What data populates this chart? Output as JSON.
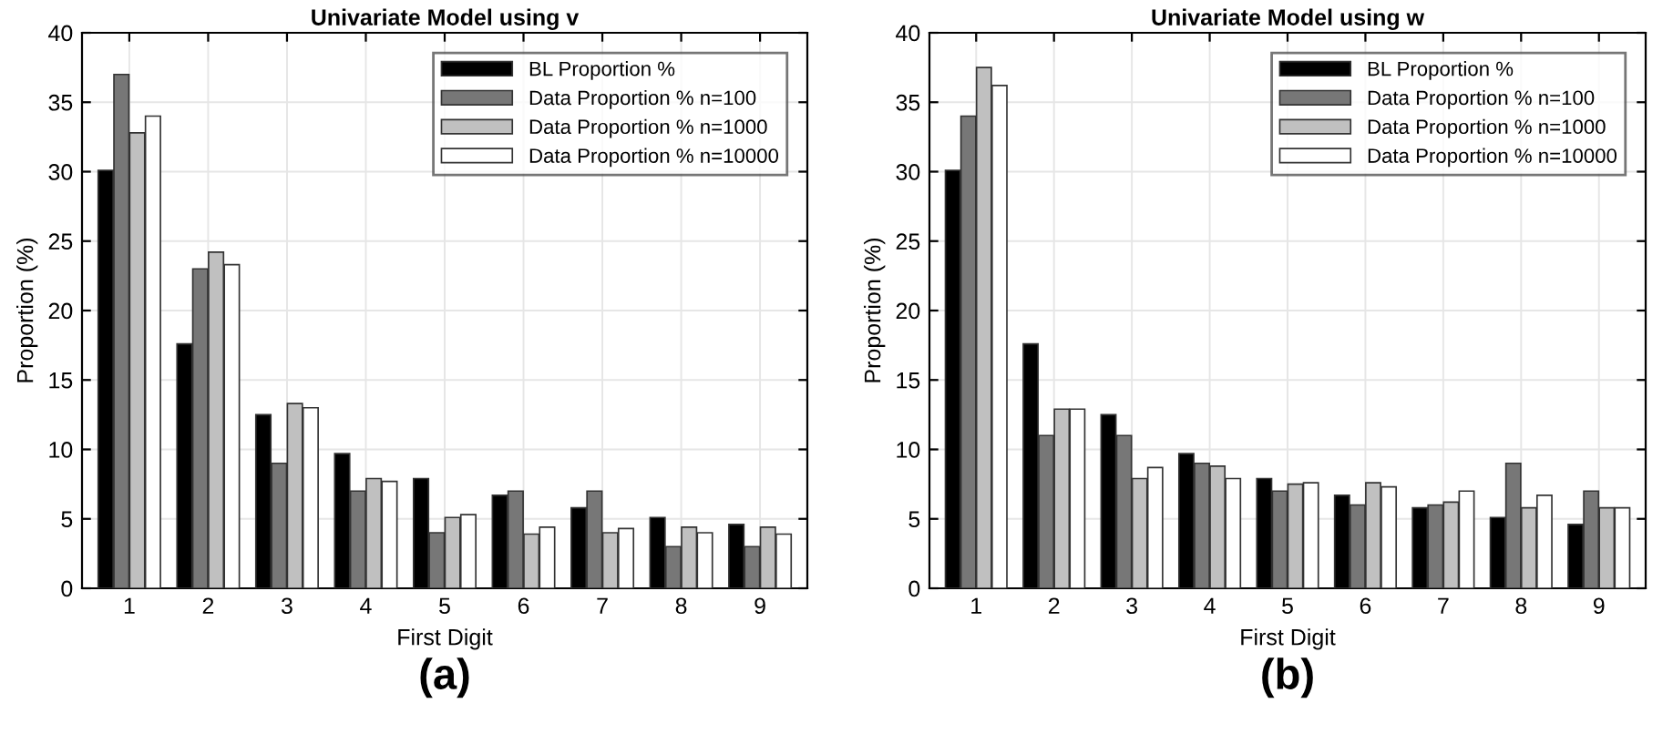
{
  "chart_data": [
    {
      "type": "bar",
      "title": "Univariate Model using v",
      "xlabel": "First Digit",
      "ylabel": "Proportion (%)",
      "categories": [
        "1",
        "2",
        "3",
        "4",
        "5",
        "6",
        "7",
        "8",
        "9"
      ],
      "series": [
        {
          "name": "BL Proportion %",
          "color": "#000000",
          "values": [
            30.1,
            17.6,
            12.5,
            9.7,
            7.9,
            6.7,
            5.8,
            5.1,
            4.6
          ]
        },
        {
          "name": "Data Proportion % n=100",
          "color": "#777777",
          "values": [
            37,
            23,
            9,
            7,
            4,
            7,
            7,
            3,
            3
          ]
        },
        {
          "name": "Data Proportion % n=1000",
          "color": "#c0c0c0",
          "values": [
            32.8,
            24.2,
            13.3,
            7.9,
            5.1,
            3.9,
            4,
            4.4,
            4.4
          ]
        },
        {
          "name": "Data Proportion % n=10000",
          "color": "#ffffff",
          "values": [
            34,
            23.3,
            13,
            7.7,
            5.3,
            4.4,
            4.3,
            4,
            3.9
          ]
        }
      ],
      "ylim": [
        0,
        40
      ],
      "yticks": [
        0,
        5,
        10,
        15,
        20,
        25,
        30,
        35,
        40
      ],
      "grid": true,
      "legend": "top right",
      "annotations": [
        "(a)"
      ]
    },
    {
      "type": "bar",
      "title": "Univariate Model using w",
      "xlabel": "First Digit",
      "ylabel": "Proportion (%)",
      "categories": [
        "1",
        "2",
        "3",
        "4",
        "5",
        "6",
        "7",
        "8",
        "9"
      ],
      "series": [
        {
          "name": "BL Proportion %",
          "color": "#000000",
          "values": [
            30.1,
            17.6,
            12.5,
            9.7,
            7.9,
            6.7,
            5.8,
            5.1,
            4.6
          ]
        },
        {
          "name": "Data Proportion % n=100",
          "color": "#777777",
          "values": [
            34,
            11,
            11,
            9,
            7,
            6,
            6,
            9,
            7
          ]
        },
        {
          "name": "Data Proportion % n=1000",
          "color": "#c0c0c0",
          "values": [
            37.5,
            12.9,
            7.9,
            8.8,
            7.5,
            7.6,
            6.2,
            5.8,
            5.8
          ]
        },
        {
          "name": "Data Proportion % n=10000",
          "color": "#ffffff",
          "values": [
            36.2,
            12.9,
            8.7,
            7.9,
            7.6,
            7.3,
            7.0,
            6.7,
            5.8
          ]
        }
      ],
      "ylim": [
        0,
        40
      ],
      "yticks": [
        0,
        5,
        10,
        15,
        20,
        25,
        30,
        35,
        40
      ],
      "grid": true,
      "legend": "top right",
      "annotations": [
        "(b)"
      ]
    }
  ]
}
